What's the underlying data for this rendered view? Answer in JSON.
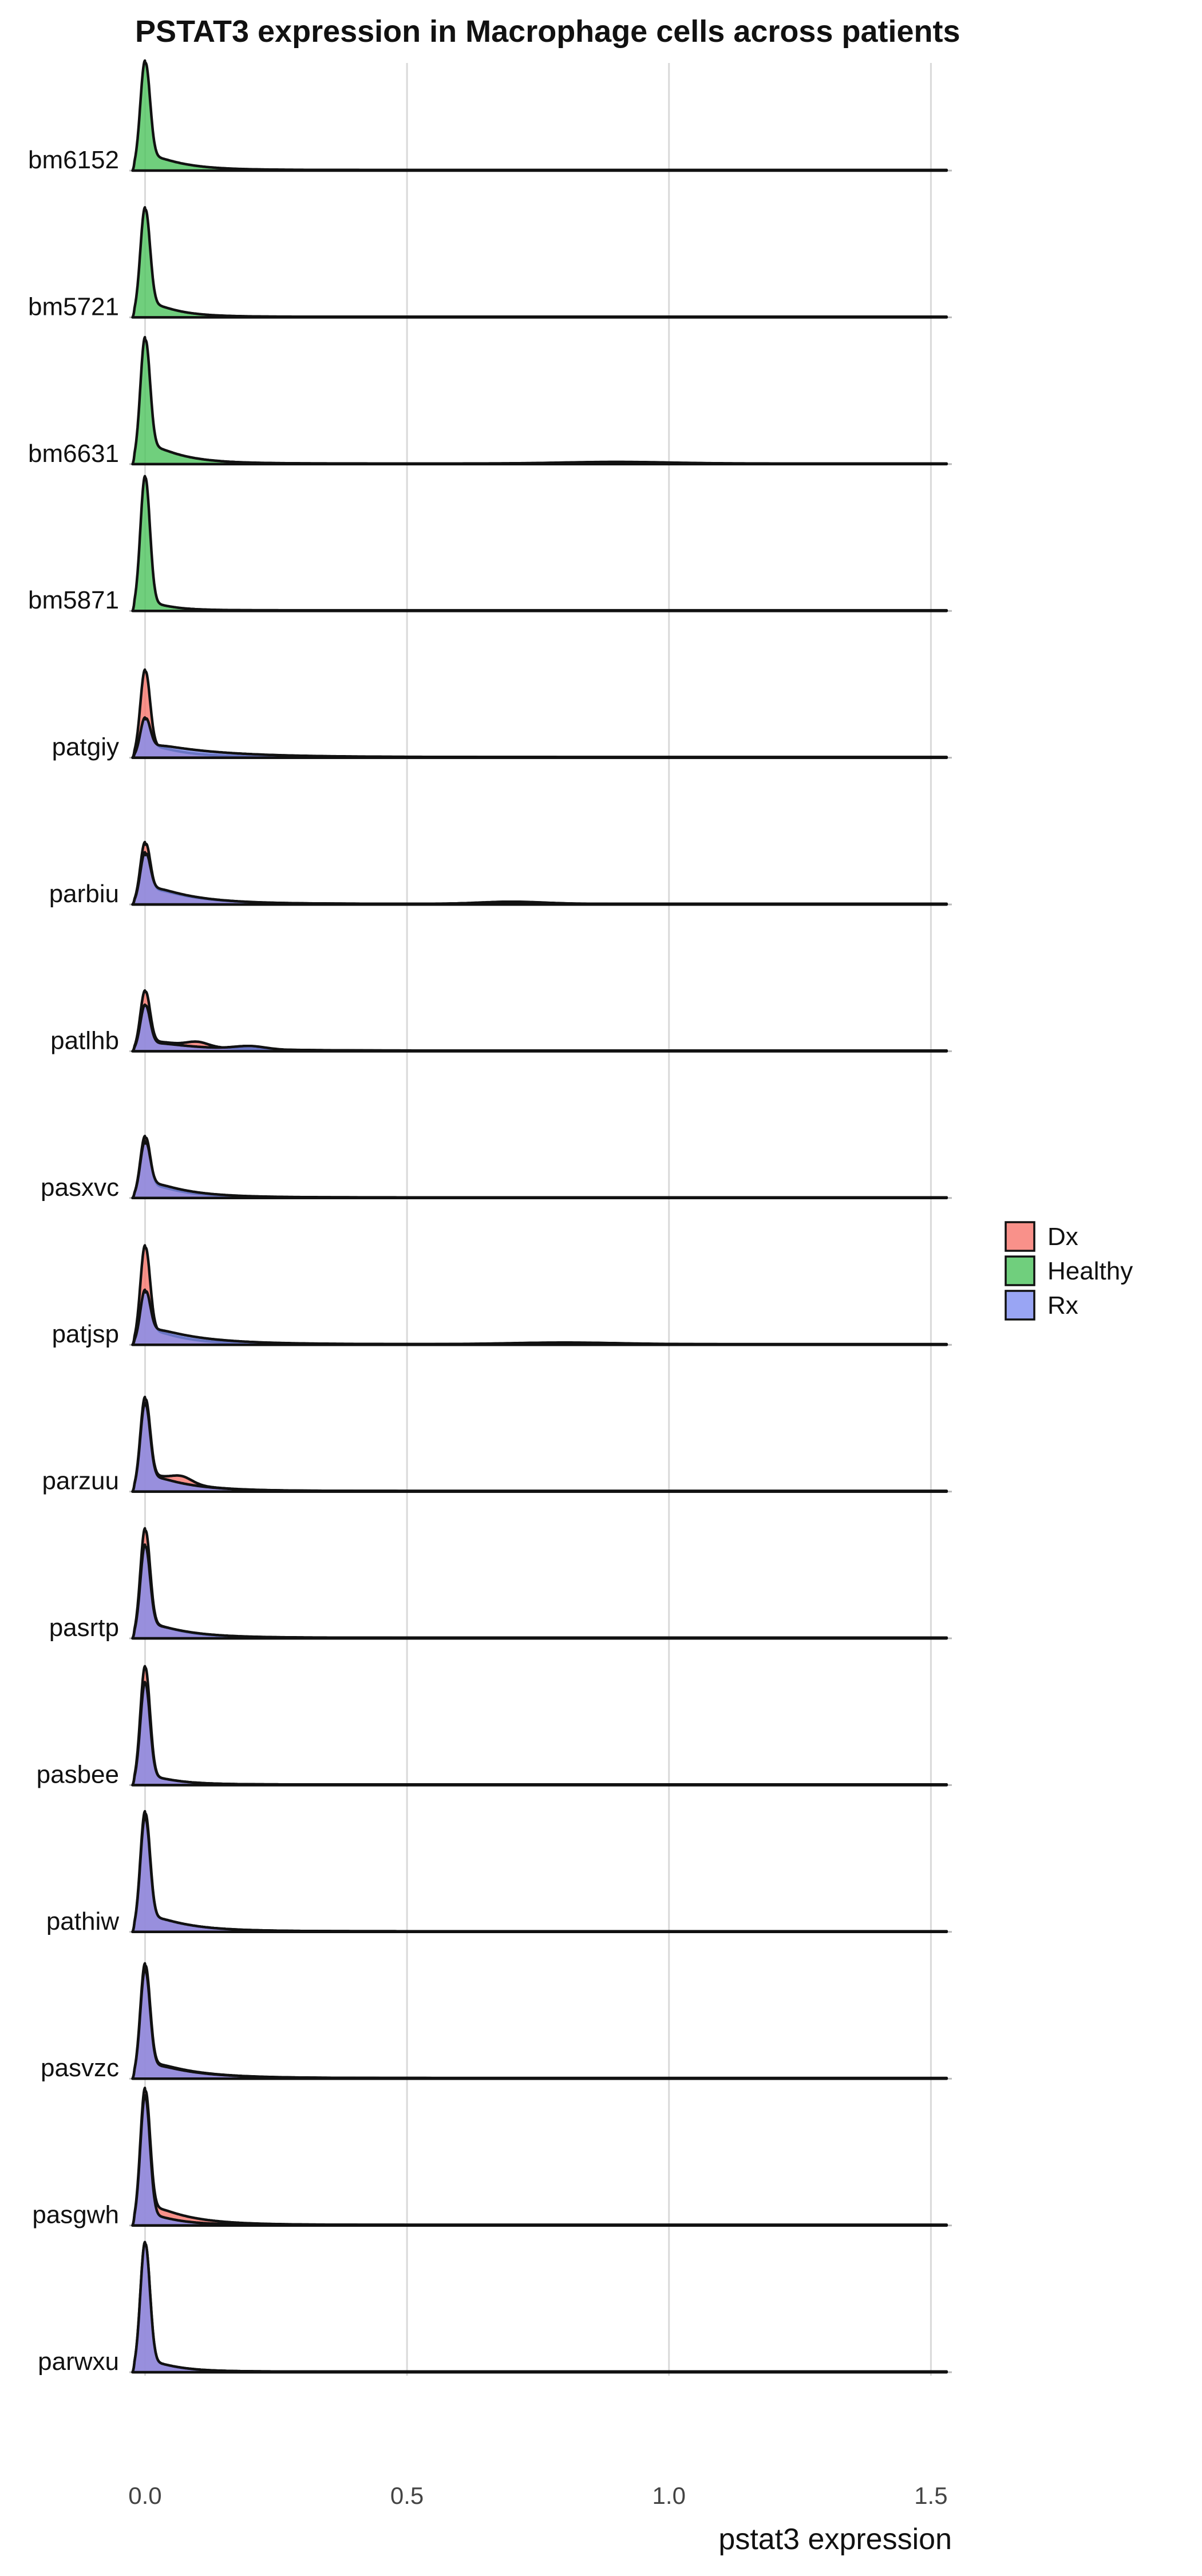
{
  "colors": {
    "Dx": "#f8766d",
    "Healthy": "#4cc35c",
    "Rx": "#7f8ef1"
  },
  "chart_data": {
    "type": "ridgeline-density",
    "title": "PSTAT3 expression in Macrophage cells across patients",
    "xlabel": "pstat3 expression",
    "ylabel": "",
    "xlim": [
      -0.03,
      1.54
    ],
    "x_ticks": [
      0.0,
      0.5,
      1.0,
      1.5
    ],
    "x_tick_labels": [
      "0.0",
      "0.5",
      "1.0",
      "1.5"
    ],
    "grid": true,
    "legend": {
      "position": "right",
      "entries": [
        "Dx",
        "Healthy",
        "Rx"
      ]
    },
    "rows": [
      {
        "label": "bm6152",
        "densities": [
          {
            "group": "Healthy",
            "peak_x": 0.0,
            "peak": 1.0,
            "shoulder": 0.2,
            "tail_scale": 0.06,
            "bumps": []
          }
        ]
      },
      {
        "label": "bm5721",
        "densities": [
          {
            "group": "Healthy",
            "peak_x": 0.0,
            "peak": 1.0,
            "shoulder": 0.2,
            "tail_scale": 0.05,
            "bumps": []
          }
        ]
      },
      {
        "label": "bm6631",
        "densities": [
          {
            "group": "Healthy",
            "peak_x": 0.0,
            "peak": 1.15,
            "shoulder": 0.25,
            "tail_scale": 0.06,
            "bumps": [
              {
                "x": 0.9,
                "h": 0.015,
                "w": 0.1
              }
            ]
          }
        ]
      },
      {
        "label": "bm5871",
        "densities": [
          {
            "group": "Healthy",
            "peak_x": 0.0,
            "peak": 1.25,
            "shoulder": 0.12,
            "tail_scale": 0.04,
            "bumps": []
          }
        ]
      },
      {
        "label": "patgiy",
        "densities": [
          {
            "group": "Dx",
            "peak_x": 0.0,
            "peak": 0.8,
            "shoulder": 0.16,
            "tail_scale": 0.06,
            "bumps": []
          },
          {
            "group": "Rx",
            "peak_x": 0.0,
            "peak": 0.35,
            "shoulder": 0.15,
            "tail_scale": 0.12,
            "bumps": []
          }
        ]
      },
      {
        "label": "parbiu",
        "densities": [
          {
            "group": "Dx",
            "peak_x": 0.0,
            "peak": 0.55,
            "shoulder": 0.2,
            "tail_scale": 0.08,
            "bumps": [
              {
                "x": 0.7,
                "h": 0.02,
                "w": 0.06
              }
            ]
          },
          {
            "group": "Rx",
            "peak_x": 0.0,
            "peak": 0.45,
            "shoulder": 0.22,
            "tail_scale": 0.08,
            "bumps": []
          }
        ]
      },
      {
        "label": "patlhb",
        "densities": [
          {
            "group": "Dx",
            "peak_x": 0.0,
            "peak": 0.55,
            "shoulder": 0.12,
            "tail_scale": 0.1,
            "bumps": [
              {
                "x": 0.1,
                "h": 0.04,
                "w": 0.02
              }
            ]
          },
          {
            "group": "Rx",
            "peak_x": 0.0,
            "peak": 0.42,
            "shoulder": 0.1,
            "tail_scale": 0.1,
            "bumps": [
              {
                "x": 0.2,
                "h": 0.03,
                "w": 0.03
              }
            ]
          }
        ]
      },
      {
        "label": "pasxvc",
        "densities": [
          {
            "group": "Dx",
            "peak_x": 0.0,
            "peak": 0.55,
            "shoulder": 0.18,
            "tail_scale": 0.06,
            "bumps": []
          },
          {
            "group": "Rx",
            "peak_x": 0.0,
            "peak": 0.5,
            "shoulder": 0.2,
            "tail_scale": 0.07,
            "bumps": []
          }
        ]
      },
      {
        "label": "patjsp",
        "densities": [
          {
            "group": "Dx",
            "peak_x": 0.0,
            "peak": 0.9,
            "shoulder": 0.2,
            "tail_scale": 0.06,
            "bumps": [
              {
                "x": 0.8,
                "h": 0.015,
                "w": 0.1
              }
            ]
          },
          {
            "group": "Rx",
            "peak_x": 0.0,
            "peak": 0.48,
            "shoulder": 0.2,
            "tail_scale": 0.09,
            "bumps": []
          }
        ]
      },
      {
        "label": "parzuu",
        "densities": [
          {
            "group": "Dx",
            "peak_x": 0.0,
            "peak": 0.85,
            "shoulder": 0.22,
            "tail_scale": 0.07,
            "bumps": [
              {
                "x": 0.07,
                "h": 0.06,
                "w": 0.02
              }
            ]
          },
          {
            "group": "Rx",
            "peak_x": 0.0,
            "peak": 0.8,
            "shoulder": 0.2,
            "tail_scale": 0.07,
            "bumps": []
          }
        ]
      },
      {
        "label": "pasrtp",
        "densities": [
          {
            "group": "Dx",
            "peak_x": 0.0,
            "peak": 1.0,
            "shoulder": 0.2,
            "tail_scale": 0.06,
            "bumps": []
          },
          {
            "group": "Rx",
            "peak_x": 0.0,
            "peak": 0.85,
            "shoulder": 0.18,
            "tail_scale": 0.07,
            "bumps": []
          }
        ]
      },
      {
        "label": "pasbee",
        "densities": [
          {
            "group": "Dx",
            "peak_x": 0.0,
            "peak": 1.1,
            "shoulder": 0.12,
            "tail_scale": 0.05,
            "bumps": []
          },
          {
            "group": "Rx",
            "peak_x": 0.0,
            "peak": 0.95,
            "shoulder": 0.12,
            "tail_scale": 0.05,
            "bumps": []
          }
        ]
      },
      {
        "label": "pathiw",
        "densities": [
          {
            "group": "Dx",
            "peak_x": 0.0,
            "peak": 1.1,
            "shoulder": 0.2,
            "tail_scale": 0.07,
            "bumps": []
          },
          {
            "group": "Rx",
            "peak_x": 0.0,
            "peak": 1.05,
            "shoulder": 0.2,
            "tail_scale": 0.07,
            "bumps": []
          }
        ]
      },
      {
        "label": "pasvzc",
        "densities": [
          {
            "group": "Dx",
            "peak_x": 0.0,
            "peak": 1.05,
            "shoulder": 0.2,
            "tail_scale": 0.08,
            "bumps": []
          },
          {
            "group": "Rx",
            "peak_x": 0.0,
            "peak": 1.0,
            "shoulder": 0.18,
            "tail_scale": 0.08,
            "bumps": []
          }
        ]
      },
      {
        "label": "pasgwh",
        "densities": [
          {
            "group": "Dx",
            "peak_x": 0.0,
            "peak": 1.25,
            "shoulder": 0.25,
            "tail_scale": 0.07,
            "bumps": []
          },
          {
            "group": "Rx",
            "peak_x": 0.0,
            "peak": 1.2,
            "shoulder": 0.15,
            "tail_scale": 0.05,
            "bumps": []
          }
        ]
      },
      {
        "label": "parwxu",
        "densities": [
          {
            "group": "Dx",
            "peak_x": 0.0,
            "peak": 1.2,
            "shoulder": 0.15,
            "tail_scale": 0.05,
            "bumps": []
          },
          {
            "group": "Rx",
            "peak_x": 0.0,
            "peak": 1.2,
            "shoulder": 0.15,
            "tail_scale": 0.05,
            "bumps": []
          }
        ]
      }
    ]
  }
}
